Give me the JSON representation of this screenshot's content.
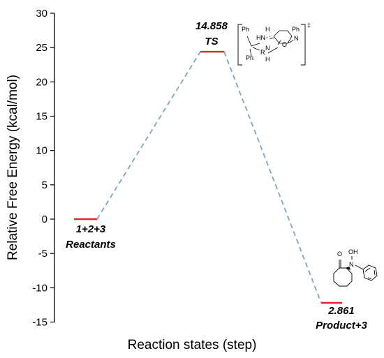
{
  "chart_data": {
    "type": "line",
    "xlabel": "Reaction states (step)",
    "ylabel": "Relative Free Energy (kcal/mol)",
    "ylim": [
      -15,
      30
    ],
    "yticks": [
      30,
      25,
      20,
      15,
      10,
      5,
      0,
      -5,
      -10,
      -15
    ],
    "grid": false,
    "states": [
      {
        "energy": 0,
        "value_label": "1+2+3",
        "name_label": "Reactants"
      },
      {
        "energy": 24.4,
        "value_label": "14.858",
        "name_label": "TS"
      },
      {
        "energy": -12.2,
        "value_label": "2.861",
        "name_label": "Product+3"
      }
    ],
    "level_color": "#e8242b",
    "connector_color": "#7fa6b8"
  },
  "structures": {
    "ts_labels": [
      "Ph",
      "H",
      "HN",
      "N",
      "R",
      "H",
      "Ph",
      "Ph",
      "O",
      "N"
    ],
    "ts_dagger": "‡",
    "product_labels": [
      "O",
      "OH",
      "N"
    ]
  }
}
